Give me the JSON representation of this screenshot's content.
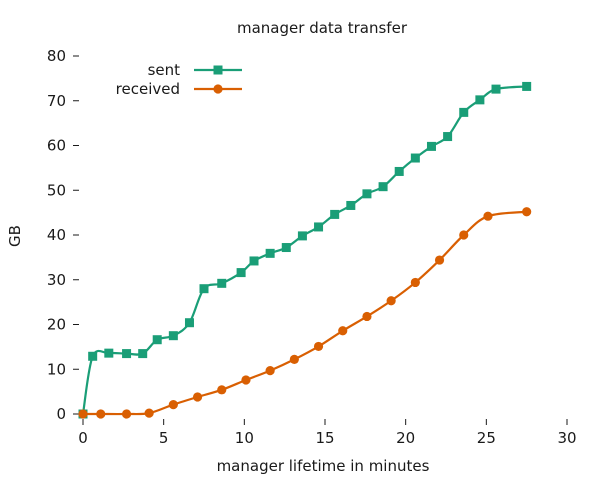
{
  "chart_data": {
    "type": "line",
    "title": "manager data transfer",
    "xlabel": "manager lifetime in minutes",
    "ylabel": "GB",
    "xlim": [
      0,
      30
    ],
    "ylim": [
      0,
      80
    ],
    "xticks": [
      0,
      5,
      10,
      15,
      20,
      25,
      30
    ],
    "yticks": [
      0,
      10,
      20,
      30,
      40,
      50,
      60,
      70,
      80
    ],
    "grid": false,
    "legend_position": "top-left",
    "series": [
      {
        "name": "sent",
        "color": "#1a9e77",
        "marker": "square",
        "x": [
          0,
          0.6,
          1.6,
          2.7,
          3.7,
          4.6,
          5.6,
          6.6,
          7.5,
          8.6,
          9.8,
          10.6,
          11.6,
          12.6,
          13.6,
          14.6,
          15.6,
          16.6,
          17.6,
          18.6,
          19.6,
          20.6,
          21.6,
          22.6,
          23.6,
          24.6,
          25.6,
          27.5
        ],
        "y": [
          0,
          12.9,
          13.6,
          13.5,
          13.5,
          16.6,
          17.5,
          20.4,
          28.0,
          29.2,
          31.6,
          34.2,
          35.9,
          37.2,
          39.8,
          41.8,
          44.6,
          46.6,
          49.2,
          50.8,
          54.2,
          57.2,
          59.8,
          62.0,
          67.4,
          70.2,
          72.6,
          73.2
        ]
      },
      {
        "name": "received",
        "color": "#d95f02",
        "marker": "circle",
        "x": [
          0,
          1.1,
          2.7,
          4.1,
          5.6,
          7.1,
          8.6,
          10.1,
          11.6,
          13.1,
          14.6,
          16.1,
          17.6,
          19.1,
          20.6,
          22.1,
          23.6,
          25.1,
          27.5
        ],
        "y": [
          0,
          0,
          0,
          0.2,
          2.1,
          3.8,
          5.4,
          7.6,
          9.7,
          12.2,
          15.1,
          18.6,
          21.8,
          25.3,
          29.4,
          34.4,
          40.0,
          44.2,
          45.2
        ]
      }
    ]
  }
}
